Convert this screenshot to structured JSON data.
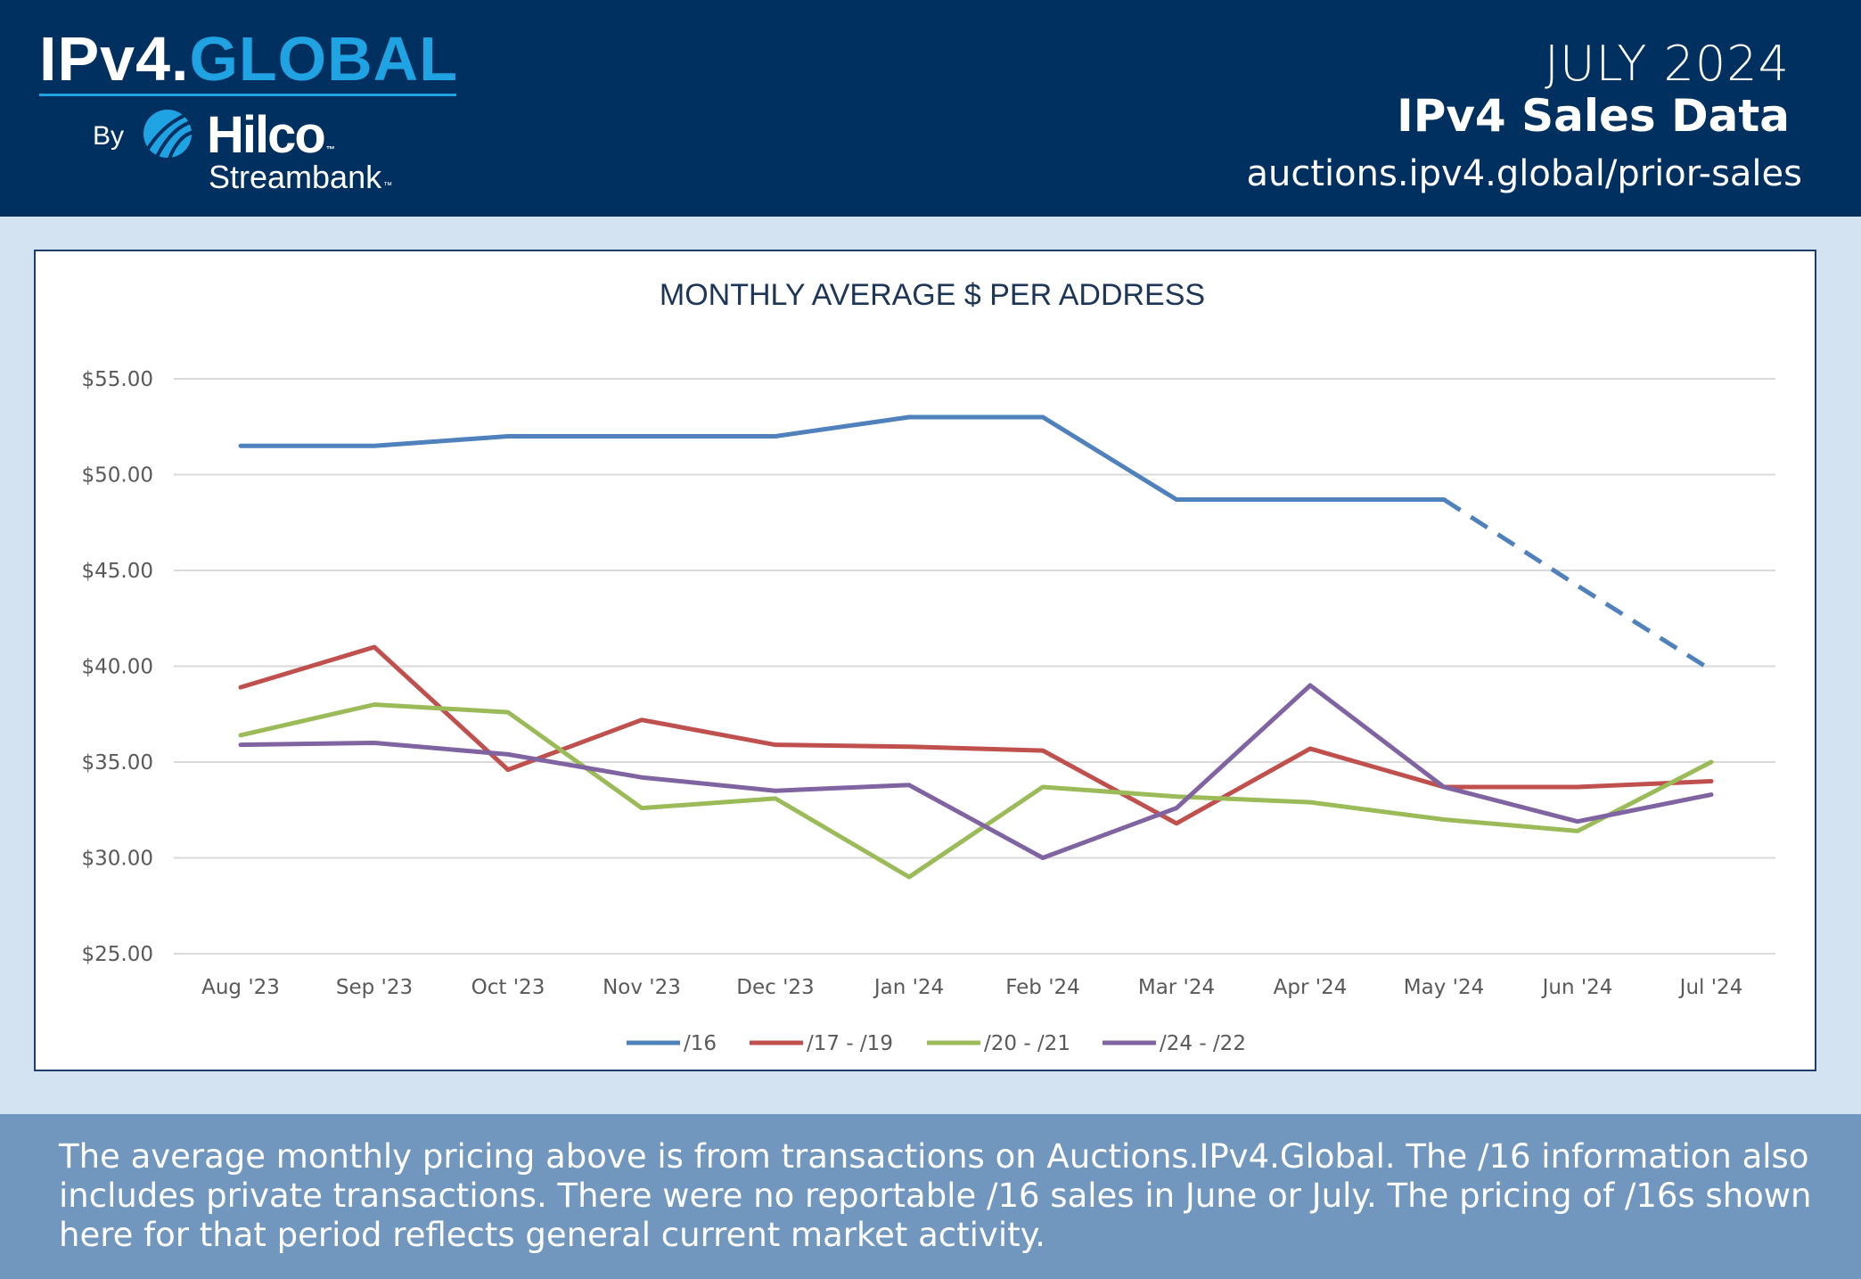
{
  "header": {
    "logo": {
      "part1": "IPv4.",
      "part2": "GLOBAL",
      "by": "By",
      "hilco": "Hilco",
      "streambank": "Streambank",
      "tm": "™"
    },
    "month": "JULY 2024",
    "title": "IPv4 Sales Data",
    "url": "auctions.ipv4.global/prior-sales"
  },
  "footer": {
    "note": "The average monthly pricing above is from transactions on Auctions.IPv4.Global. The /16 information also includes private transactions. There were no reportable /16 sales in June or July. The pricing of /16s shown here for that period reflects general current market activity."
  },
  "colors": {
    "header_bg": "#00305f",
    "accent": "#1fa3e2",
    "footer_bg": "#7197bf"
  },
  "chart_data": {
    "type": "line",
    "title": "MONTHLY AVERAGE $ PER ADDRESS",
    "xlabel": "",
    "ylabel": "",
    "categories": [
      "Aug '23",
      "Sep '23",
      "Oct '23",
      "Nov '23",
      "Dec '23",
      "Jan '24",
      "Feb '24",
      "Mar '24",
      "Apr '24",
      "May '24",
      "Jun '24",
      "Jul '24"
    ],
    "ylim": [
      25,
      55
    ],
    "yticks": [
      "$25.00",
      "$30.00",
      "$35.00",
      "$40.00",
      "$45.00",
      "$50.00",
      "$55.00"
    ],
    "ytick_values": [
      25,
      30,
      35,
      40,
      45,
      50,
      55
    ],
    "grid": true,
    "legend_position": "bottom",
    "series": [
      {
        "name": "/16",
        "color": "#4f81bd",
        "values": [
          51.5,
          51.5,
          52.0,
          52.0,
          52.0,
          53.0,
          53.0,
          48.7,
          48.7,
          48.7,
          44.2,
          39.8
        ],
        "dashed_from_index": 9
      },
      {
        "name": "/17 - /19",
        "color": "#c0504d",
        "values": [
          38.9,
          41.0,
          34.6,
          37.2,
          35.9,
          35.8,
          35.6,
          31.8,
          35.7,
          33.7,
          33.7,
          34.0
        ]
      },
      {
        "name": "/20 - /21",
        "color": "#9bbb59",
        "values": [
          36.4,
          38.0,
          37.6,
          32.6,
          33.1,
          29.0,
          33.7,
          33.2,
          32.9,
          32.0,
          31.4,
          35.0
        ]
      },
      {
        "name": "/24 - /22",
        "color": "#8064a2",
        "values": [
          35.9,
          36.0,
          35.4,
          34.2,
          33.5,
          33.8,
          30.0,
          32.6,
          39.0,
          33.7,
          31.9,
          33.3
        ]
      }
    ]
  }
}
